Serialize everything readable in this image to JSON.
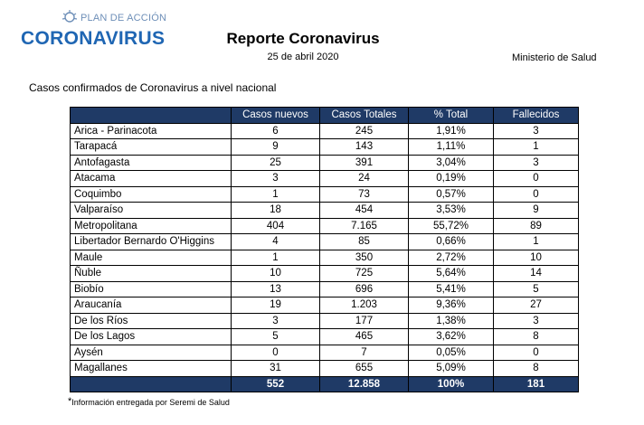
{
  "logo": {
    "subtitle": "PLAN DE ACCIÓN",
    "main": "CORONAVIRUS"
  },
  "header": {
    "title": "Reporte Coronavirus",
    "date": "25 de abril 2020",
    "ministry": "Ministerio de Salud"
  },
  "subtitle": "Casos confirmados de Coronavirus a nivel nacional",
  "table": {
    "columns": [
      "",
      "Casos nuevos",
      "Casos Totales",
      "% Total",
      "Fallecidos"
    ],
    "rows": [
      [
        "Arica - Parinacota",
        "6",
        "245",
        "1,91%",
        "3"
      ],
      [
        "Tarapacá",
        "9",
        "143",
        "1,11%",
        "1"
      ],
      [
        "Antofagasta",
        "25",
        "391",
        "3,04%",
        "3"
      ],
      [
        "Atacama",
        "3",
        "24",
        "0,19%",
        "0"
      ],
      [
        "Coquimbo",
        "1",
        "73",
        "0,57%",
        "0"
      ],
      [
        "Valparaíso",
        "18",
        "454",
        "3,53%",
        "9"
      ],
      [
        "Metropolitana",
        "404",
        "7.165",
        "55,72%",
        "89"
      ],
      [
        "Libertador Bernardo O'Higgins",
        "4",
        "85",
        "0,66%",
        "1"
      ],
      [
        "Maule",
        "1",
        "350",
        "2,72%",
        "10"
      ],
      [
        "Ñuble",
        "10",
        "725",
        "5,64%",
        "14"
      ],
      [
        "Biobío",
        "13",
        "696",
        "5,41%",
        "5"
      ],
      [
        "Araucanía",
        "19",
        "1.203",
        "9,36%",
        "27"
      ],
      [
        "De los Ríos",
        "3",
        "177",
        "1,38%",
        "3"
      ],
      [
        "De los Lagos",
        "5",
        "465",
        "3,62%",
        "8"
      ],
      [
        "Aysén",
        "0",
        "7",
        "0,05%",
        "0"
      ],
      [
        "Magallanes",
        "31",
        "655",
        "5,09%",
        "8"
      ]
    ],
    "total": [
      "",
      "552",
      "12.858",
      "100%",
      "181"
    ]
  },
  "footnote": {
    "star": "*",
    "text": "Información entregada por Seremi de Salud"
  },
  "colors": {
    "header_bg": "#1f3a66",
    "logo_blue": "#1f66b3",
    "logo_light": "#6e8fb8"
  }
}
